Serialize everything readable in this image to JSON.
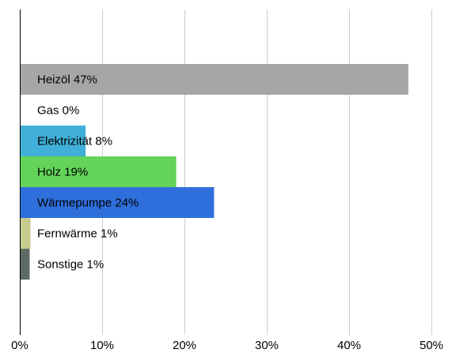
{
  "chart_data": {
    "type": "bar",
    "orientation": "horizontal",
    "categories": [
      "Heizöl",
      "Gas",
      "Elektrizität",
      "Holz",
      "Wärmepumpe",
      "Fernwärme",
      "Sonstige"
    ],
    "labels": [
      "Heizöl 47%",
      "Gas 0%",
      "Elektrizität 8%",
      "Holz 19%",
      "Wärmepumpe 24%",
      "Fernwärme 1%",
      "Sonstige 1%"
    ],
    "values": [
      47.2,
      0,
      8,
      19,
      23.6,
      1.3,
      1.2
    ],
    "colors": [
      "#a6a6a6",
      "#ffffff",
      "#40b0d8",
      "#63d35a",
      "#2f6fdb",
      "#c7cc8e",
      "#5e6b65"
    ],
    "xlim": [
      0,
      50
    ],
    "xticks": [
      0,
      10,
      20,
      30,
      40,
      50
    ],
    "xtick_labels": [
      "0%",
      "10%",
      "20%",
      "30%",
      "40%",
      "50%"
    ],
    "grid": true,
    "title": "",
    "xlabel": "",
    "ylabel": ""
  }
}
